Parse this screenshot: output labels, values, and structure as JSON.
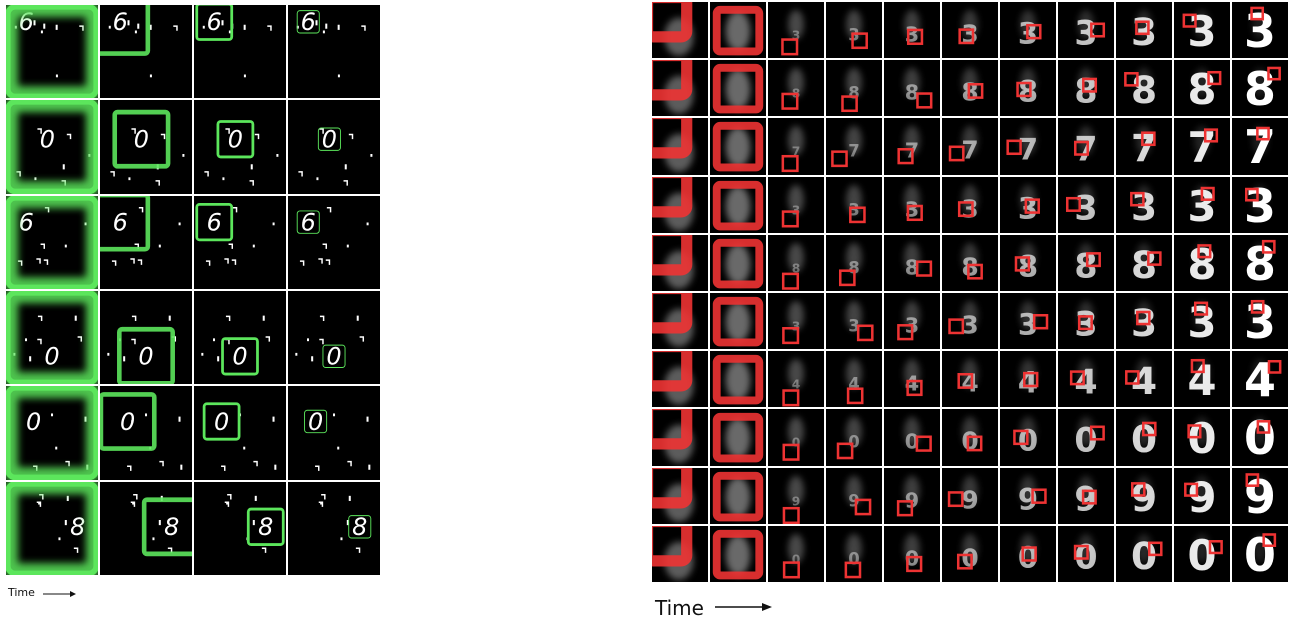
{
  "figure": {
    "left_panel": {
      "time_label": "Time",
      "rows": 6,
      "cols": 4,
      "row_digits": [
        "6",
        "0",
        "6",
        "0",
        "0",
        "8"
      ],
      "accent_color": "#5ce65c"
    },
    "right_panel": {
      "time_label": "Time",
      "rows": 10,
      "cols": 11,
      "row_digits": [
        "3",
        "8",
        "7",
        "3",
        "8",
        "3",
        "4",
        "0",
        "9",
        "0"
      ],
      "accent_color": "#ee3333"
    }
  }
}
